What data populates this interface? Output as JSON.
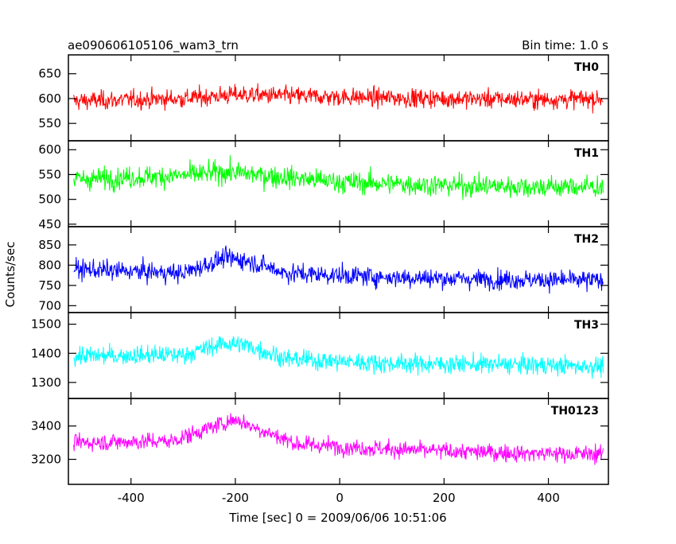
{
  "chart_data": {
    "type": "line",
    "title": "ae090606105106_wam3_trn",
    "subtitle": "Bin time: 1.0 s",
    "xlabel": "Time [sec] 0 = 2009/06/06 10:51:06",
    "ylabel": "Counts/sec",
    "xlim": [
      -520,
      515
    ],
    "xticks": [
      -400,
      -200,
      0,
      200,
      400
    ],
    "grid": false,
    "panels": [
      {
        "name": "TH0",
        "color": "#ff0000",
        "ylim": [
          515,
          688
        ],
        "yticks": [
          550,
          600,
          650
        ],
        "base": [
          [
            -510,
            595
          ],
          [
            -300,
            600
          ],
          [
            -200,
            608
          ],
          [
            0,
            603
          ],
          [
            200,
            600
          ],
          [
            400,
            598
          ],
          [
            505,
            600
          ]
        ],
        "noise": 22,
        "ymin_clip": 525,
        "ymax_clip": 685
      },
      {
        "name": "TH1",
        "color": "#00ff00",
        "ylim": [
          445,
          618
        ],
        "yticks": [
          450,
          500,
          550,
          600
        ],
        "base": [
          [
            -510,
            540
          ],
          [
            -300,
            548
          ],
          [
            -220,
            555
          ],
          [
            0,
            535
          ],
          [
            200,
            528
          ],
          [
            400,
            525
          ],
          [
            505,
            525
          ]
        ],
        "noise": 26,
        "ymin_clip": 455,
        "ymax_clip": 615
      },
      {
        "name": "TH2",
        "color": "#0000ff",
        "ylim": [
          683,
          895
        ],
        "yticks": [
          700,
          750,
          800,
          850
        ],
        "base": [
          [
            -510,
            790
          ],
          [
            -300,
            780
          ],
          [
            -220,
            818
          ],
          [
            -180,
            812
          ],
          [
            -100,
            780
          ],
          [
            100,
            770
          ],
          [
            300,
            765
          ],
          [
            505,
            762
          ]
        ],
        "noise": 28,
        "ymin_clip": 688,
        "ymax_clip": 890
      },
      {
        "name": "TH3",
        "color": "#00ffff",
        "ylim": [
          1245,
          1540
        ],
        "yticks": [
          1300,
          1400,
          1500
        ],
        "base": [
          [
            -510,
            1390
          ],
          [
            -300,
            1395
          ],
          [
            -220,
            1435
          ],
          [
            -180,
            1428
          ],
          [
            -100,
            1380
          ],
          [
            100,
            1365
          ],
          [
            300,
            1362
          ],
          [
            505,
            1355
          ]
        ],
        "noise": 38,
        "ymin_clip": 1260,
        "ymax_clip": 1535
      },
      {
        "name": "TH0123",
        "color": "#ff00ff",
        "ylim": [
          3050,
          3565
        ],
        "yticks": [
          3200,
          3400
        ],
        "base": [
          [
            -510,
            3300
          ],
          [
            -320,
            3310
          ],
          [
            -230,
            3410
          ],
          [
            -200,
            3440
          ],
          [
            -170,
            3400
          ],
          [
            -80,
            3290
          ],
          [
            100,
            3260
          ],
          [
            300,
            3240
          ],
          [
            505,
            3230
          ]
        ],
        "noise": 60,
        "ymin_clip": 3070,
        "ymax_clip": 3560
      }
    ]
  }
}
